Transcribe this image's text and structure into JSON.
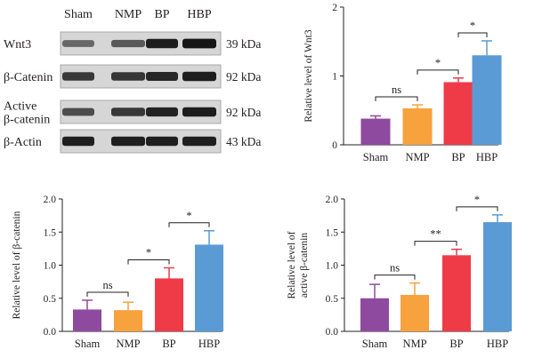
{
  "blot": {
    "lanes": [
      "Sham",
      "NMP",
      "BP",
      "HBP"
    ],
    "rows": [
      {
        "name": "Wnt3",
        "name_lines": [
          "Wnt3"
        ],
        "mw": "39 kDa",
        "intensity": [
          0.35,
          0.45,
          0.9,
          0.95
        ]
      },
      {
        "name": "β-Catenin",
        "name_lines": [
          "β-Catenin"
        ],
        "mw": "92 kDa",
        "intensity": [
          0.7,
          0.72,
          0.82,
          0.9
        ]
      },
      {
        "name": "Active β-catenin",
        "name_lines": [
          "Active",
          "β-catenin"
        ],
        "mw": "92 kDa",
        "intensity": [
          0.55,
          0.7,
          0.85,
          0.9
        ]
      },
      {
        "name": "β-Actin",
        "name_lines": [
          "β-Actin"
        ],
        "mw": "43 kDa",
        "intensity": [
          0.88,
          0.88,
          0.88,
          0.88
        ]
      }
    ]
  },
  "colors": {
    "Sham": "#8e4a9e",
    "NMP": "#f7a23c",
    "BP": "#ef3b47",
    "HBP": "#5b9bd5"
  },
  "chart_data": [
    {
      "type": "bar",
      "panel": "wnt3",
      "categories": [
        "Sham",
        "NMP",
        "BP",
        "HBP"
      ],
      "values": [
        0.38,
        0.53,
        0.91,
        1.3
      ],
      "errors": [
        0.04,
        0.05,
        0.06,
        0.21
      ],
      "ylabel": "Relative level of Wnt3",
      "ylabel_lines": [
        "Relative level of Wnt3"
      ],
      "ylim": [
        0,
        2
      ],
      "yticks": [
        "0",
        "1",
        "2"
      ],
      "significance": [
        {
          "from": "Sham",
          "to": "NMP",
          "label": "ns"
        },
        {
          "from": "NMP",
          "to": "BP",
          "label": "*"
        },
        {
          "from": "BP",
          "to": "HBP",
          "label": "*"
        }
      ]
    },
    {
      "type": "bar",
      "panel": "beta-catenin",
      "categories": [
        "Sham",
        "NMP",
        "BP",
        "HBP"
      ],
      "values": [
        0.33,
        0.32,
        0.8,
        1.31
      ],
      "errors": [
        0.14,
        0.12,
        0.16,
        0.21
      ],
      "ylabel": "Relative level of β-catenin",
      "ylabel_lines": [
        "Relative level of β-catenin"
      ],
      "ylim": [
        0,
        2
      ],
      "yticks": [
        "0.0",
        "0.5",
        "1.0",
        "1.5",
        "2.0"
      ],
      "significance": [
        {
          "from": "Sham",
          "to": "NMP",
          "label": "ns"
        },
        {
          "from": "NMP",
          "to": "BP",
          "label": "*"
        },
        {
          "from": "BP",
          "to": "HBP",
          "label": "*"
        }
      ]
    },
    {
      "type": "bar",
      "panel": "active-beta-catenin",
      "categories": [
        "Sham",
        "NMP",
        "BP",
        "HBP"
      ],
      "values": [
        0.5,
        0.55,
        1.15,
        1.65
      ],
      "errors": [
        0.21,
        0.18,
        0.09,
        0.11
      ],
      "ylabel": "Relative level of active β-catenin",
      "ylabel_lines": [
        "Relative level of",
        "active β-catenin"
      ],
      "ylim": [
        0,
        2
      ],
      "yticks": [
        "0.0",
        "0.5",
        "1.0",
        "1.5",
        "2.0"
      ],
      "significance": [
        {
          "from": "Sham",
          "to": "NMP",
          "label": "ns"
        },
        {
          "from": "NMP",
          "to": "BP",
          "label": "**"
        },
        {
          "from": "BP",
          "to": "HBP",
          "label": "*"
        }
      ]
    }
  ]
}
